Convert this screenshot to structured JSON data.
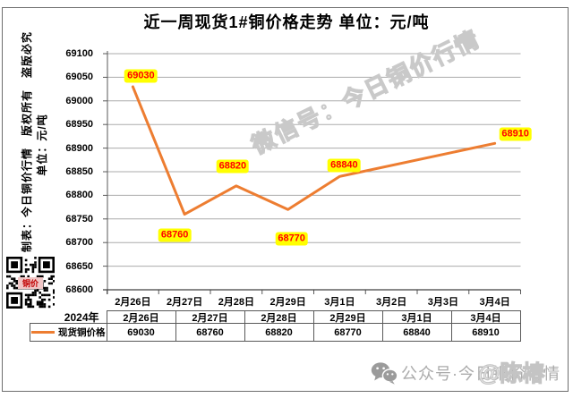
{
  "title": "近一周现货1#铜价格走势 单位：元/吨",
  "side_note": {
    "line1": "制表：今日铜价行情　版权所有　盗版必究",
    "line2": "单位：元/吨"
  },
  "watermark": {
    "diagonal": "微信号：今日铜价行情",
    "footer_handle": "@陈椿"
  },
  "qr": {
    "center_label": "铜价"
  },
  "footer": {
    "text": "公众号·今日铜价行情",
    "icon": "wechat-logo"
  },
  "table": {
    "year_label": "2024年",
    "legend_label": "现货铜价格",
    "dates": [
      "2月26日",
      "2月27日",
      "2月28日",
      "2月29日",
      "3月1日",
      "3月4日"
    ],
    "values": [
      "69030",
      "68760",
      "68820",
      "68770",
      "68840",
      "68910"
    ]
  },
  "chart_data": {
    "type": "line",
    "title": "近一周现货1#铜价格走势",
    "unit": "元/吨",
    "xlabel": "",
    "ylabel": "元/吨",
    "x": [
      "2月26日",
      "2月27日",
      "2月28日",
      "2月29日",
      "3月1日",
      "3月2日",
      "3月3日",
      "3月4日"
    ],
    "yticks": [
      69100,
      69050,
      69000,
      68950,
      68900,
      68850,
      68800,
      68750,
      68700,
      68650,
      68600
    ],
    "ylim": [
      68600,
      69100
    ],
    "grid": true,
    "legend_position": "bottom-left-table",
    "series": [
      {
        "name": "现货铜价格",
        "points": [
          {
            "x": "2月26日",
            "xi": 0,
            "value": 69030,
            "label_offset": [
              9,
              -12
            ]
          },
          {
            "x": "2月27日",
            "xi": 1,
            "value": 68760,
            "label_offset": [
              -11,
              23
            ]
          },
          {
            "x": "2月28日",
            "xi": 2,
            "value": 68820,
            "label_offset": [
              -4,
              -22
            ]
          },
          {
            "x": "2月29日",
            "xi": 3,
            "value": 68770,
            "label_offset": [
              4,
              33
            ]
          },
          {
            "x": "3月1日",
            "xi": 4,
            "value": 68840,
            "label_offset": [
              5,
              -12
            ]
          },
          {
            "x": "3月4日",
            "xi": 7,
            "value": 68910,
            "label_offset": [
              23,
              -10
            ]
          }
        ]
      }
    ],
    "colors": {
      "line": "#ED7D31",
      "label_bg": "#FFFF00",
      "label_text": "#FF0000",
      "grid": "#ABABAB",
      "axis": "#595959",
      "axis_bottom": "#404040"
    }
  }
}
